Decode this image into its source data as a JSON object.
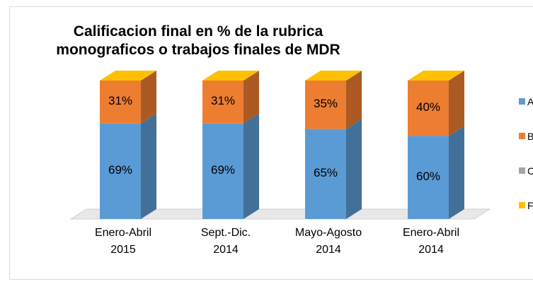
{
  "chart_data": {
    "type": "bar3d_stacked",
    "title": "Calificacion final en % de la rubrica\nmonograficos o trabajos finales de MDR",
    "categories": [
      "Enero-Abril\n2015",
      "Sept.-Dic.\n2014",
      "Mayo-Agosto\n2014",
      "Enero-Abril\n2014"
    ],
    "series": [
      {
        "name": "A",
        "color": "#5b9bd5",
        "values": [
          69,
          69,
          65,
          60
        ],
        "value_labels": [
          "69%",
          "69%",
          "65%",
          "60%"
        ]
      },
      {
        "name": "B",
        "color": "#ed7d31",
        "values": [
          31,
          31,
          35,
          40
        ],
        "value_labels": [
          "31%",
          "31%",
          "35%",
          "40%"
        ]
      },
      {
        "name": "C",
        "color": "#a5a5a5",
        "values": [
          0,
          0,
          0,
          0
        ]
      },
      {
        "name": "F",
        "color": "#ffc000",
        "values": [
          0,
          0,
          0,
          0
        ]
      }
    ],
    "ylim": [
      0,
      100
    ]
  }
}
